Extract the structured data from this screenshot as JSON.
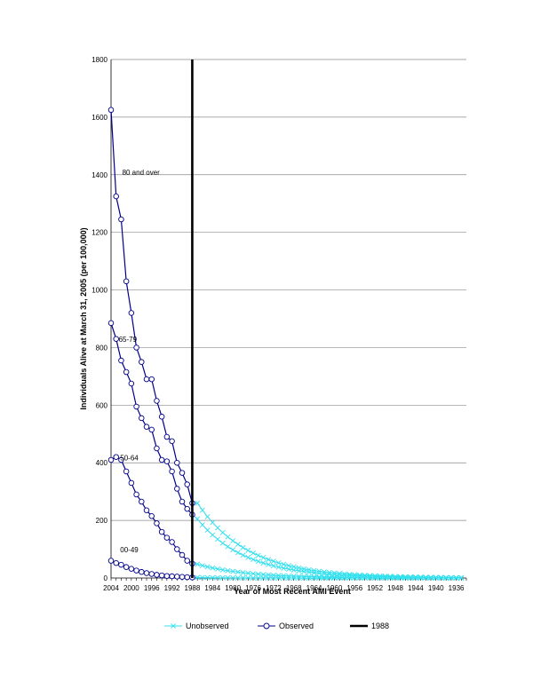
{
  "chart_data": {
    "type": "line",
    "xlabel": "Year of Most Recent AMI Event",
    "ylabel": "Individuals Alive at March 31, 2005 (per 100,000)",
    "ylim": [
      0,
      1800
    ],
    "yticks": [
      0,
      200,
      400,
      600,
      800,
      1000,
      1200,
      1400,
      1600,
      1800
    ],
    "xlim": [
      2004,
      1934
    ],
    "xticks": [
      2004,
      2000,
      1996,
      1992,
      1988,
      1984,
      1980,
      1976,
      1972,
      1968,
      1964,
      1960,
      1956,
      1952,
      1948,
      1944,
      1940,
      1936
    ],
    "x_direction": "reversed",
    "grid": "horizontal",
    "legend_position": "bottom",
    "vertical_marker": {
      "x": 1988,
      "label": "1988",
      "color": "#000000"
    },
    "colors": {
      "observed": "#00008b",
      "unobserved": "#33e0ee",
      "marker_line": "#000000"
    },
    "legend": [
      {
        "label": "Unobserved",
        "key": "unobserved",
        "marker": "x"
      },
      {
        "label": "Observed",
        "key": "observed",
        "marker": "circle"
      },
      {
        "label": "1988",
        "key": "marker_line",
        "marker": "none"
      }
    ],
    "annotations": [
      {
        "text": "80 and over",
        "x": 2001.8,
        "y": 1400
      },
      {
        "text": "65-79",
        "x": 2002.5,
        "y": 820
      },
      {
        "text": "50-64",
        "x": 2002.2,
        "y": 408
      },
      {
        "text": "00-49",
        "x": 2002.2,
        "y": 90
      }
    ],
    "groups": [
      {
        "group": "80 and over",
        "observed": {
          "x": [
            2004,
            2003,
            2002,
            2001,
            2000,
            1999,
            1998,
            1997,
            1996,
            1995,
            1994,
            1993,
            1992,
            1991,
            1990,
            1989,
            1988
          ],
          "y": [
            1625,
            1325,
            1245,
            1030,
            920,
            800,
            750,
            690,
            690,
            615,
            560,
            490,
            475,
            400,
            365,
            325,
            260
          ]
        },
        "unobserved": {
          "start_year": 1987,
          "end_year": 1935,
          "start_value": 260,
          "decay": 0.905
        }
      },
      {
        "group": "65-79",
        "observed": {
          "x": [
            2004,
            2003,
            2002,
            2001,
            2000,
            1999,
            1998,
            1997,
            1996,
            1995,
            1994,
            1993,
            1992,
            1991,
            1990,
            1989,
            1988
          ],
          "y": [
            885,
            830,
            755,
            715,
            675,
            595,
            555,
            525,
            515,
            450,
            410,
            405,
            370,
            310,
            265,
            240,
            220
          ]
        },
        "unobserved": {
          "start_year": 1987,
          "end_year": 1935,
          "start_value": 205,
          "decay": 0.9
        }
      },
      {
        "group": "50-64",
        "observed": {
          "x": [
            2004,
            2003,
            2002,
            2001,
            2000,
            1999,
            1998,
            1997,
            1996,
            1995,
            1994,
            1993,
            1992,
            1991,
            1990,
            1989,
            1988
          ],
          "y": [
            410,
            420,
            410,
            370,
            330,
            290,
            265,
            235,
            215,
            190,
            160,
            140,
            125,
            100,
            80,
            60,
            50
          ]
        },
        "unobserved": {
          "start_year": 1987,
          "end_year": 1935,
          "start_value": 48,
          "decay": 0.9
        }
      },
      {
        "group": "00-49",
        "observed": {
          "x": [
            2004,
            2003,
            2002,
            2001,
            2000,
            1999,
            1998,
            1997,
            1996,
            1995,
            1994,
            1993,
            1992,
            1991,
            1990,
            1989,
            1988
          ],
          "y": [
            60,
            52,
            46,
            38,
            32,
            26,
            21,
            17,
            14,
            11,
            9,
            7,
            6,
            5,
            4,
            3,
            2
          ]
        },
        "unobserved": {
          "start_year": 1987,
          "end_year": 1935,
          "start_value": 2,
          "decay": 0.85
        }
      }
    ]
  }
}
